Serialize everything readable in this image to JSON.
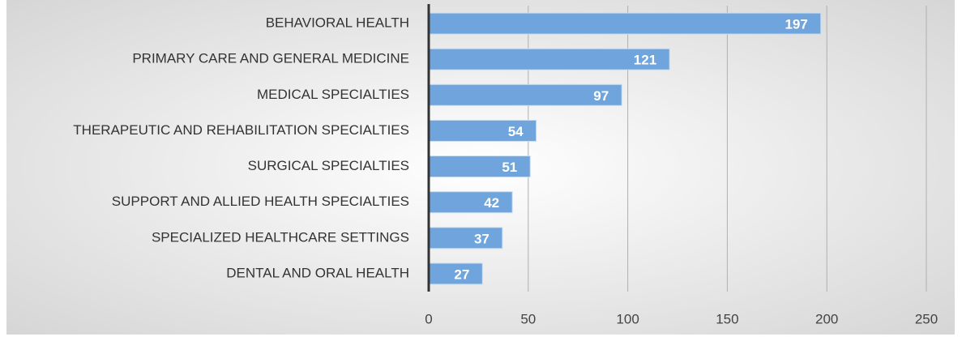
{
  "chart_data": {
    "type": "bar",
    "orientation": "horizontal",
    "categories": [
      "BEHAVIORAL HEALTH",
      "PRIMARY CARE AND GENERAL MEDICINE",
      "MEDICAL SPECIALTIES",
      "THERAPEUTIC AND REHABILITATION SPECIALTIES",
      "SURGICAL SPECIALTIES",
      "SUPPORT AND ALLIED HEALTH SPECIALTIES",
      "SPECIALIZED HEALTHCARE SETTINGS",
      "DENTAL AND ORAL HEALTH"
    ],
    "values": [
      197,
      121,
      97,
      54,
      51,
      42,
      37,
      27
    ],
    "color": "#6fa5dc",
    "xlim": [
      0,
      250
    ],
    "xticks": [
      0,
      50,
      100,
      150,
      200,
      250
    ],
    "grid": true
  }
}
